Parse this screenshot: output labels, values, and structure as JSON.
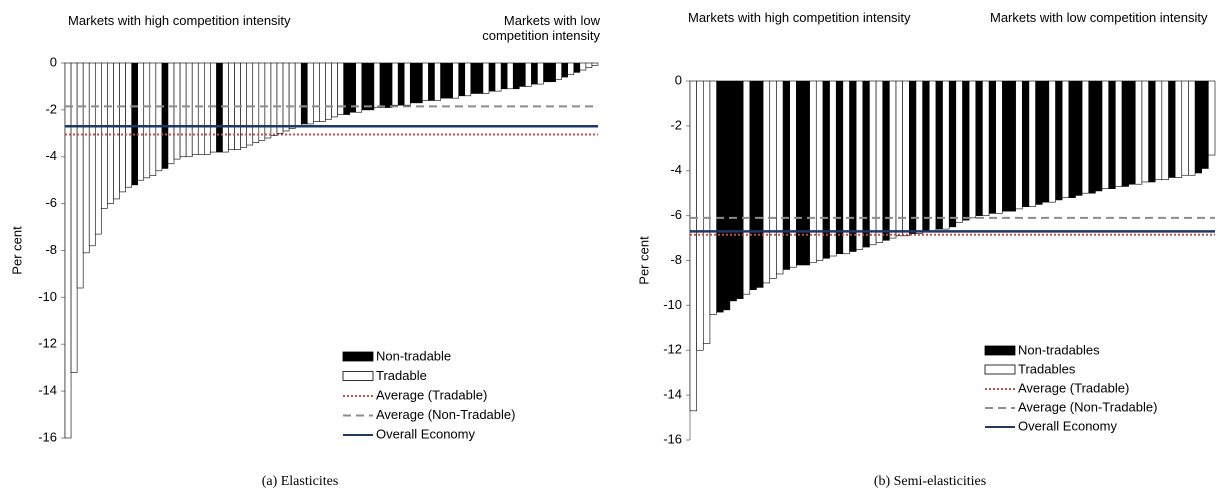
{
  "chart_data": [
    {
      "type": "bar",
      "title": "(a) Elasticites",
      "ylabel": "Per cent",
      "annotations": [
        "Markets with high competition intensity",
        "Markets with low competition intensity"
      ],
      "ylim": [
        -16,
        0
      ],
      "yticks": [
        0,
        -2,
        -4,
        -6,
        -8,
        -10,
        -12,
        -14,
        -16
      ],
      "series": [
        {
          "name": "Non-tradable",
          "color": "#000000",
          "values": [
            null,
            null,
            null,
            null,
            null,
            null,
            null,
            null,
            null,
            null,
            null,
            -5.2,
            null,
            null,
            null,
            null,
            -4.5,
            null,
            null,
            null,
            null,
            null,
            null,
            null,
            null,
            -3.8,
            null,
            null,
            null,
            null,
            null,
            null,
            null,
            null,
            null,
            null,
            null,
            null,
            null,
            -2.6,
            null,
            null,
            null,
            null,
            null,
            null,
            -2.2,
            -2.1,
            null,
            -2,
            -2,
            null,
            -1.9,
            -1.9,
            null,
            -1.8,
            null,
            -1.7,
            -1.7,
            null,
            -1.6,
            null,
            -1.5,
            -1.5,
            null,
            -1.4,
            null,
            -1.3,
            -1.3,
            null,
            -1.2,
            null,
            -1.1,
            null,
            -1.1,
            -1,
            null,
            -0.9,
            null,
            -0.8,
            -0.8,
            null,
            -0.6,
            null,
            -0.4,
            null,
            null,
            null
          ]
        },
        {
          "name": "Tradable",
          "color": "#ffffff",
          "values": [
            -16,
            -13.2,
            -9.6,
            -8.1,
            -7.8,
            -7.3,
            -6.2,
            -6,
            -5.8,
            -5.5,
            -5.3,
            null,
            -5,
            -4.9,
            -4.8,
            -4.6,
            null,
            -4.3,
            -4.1,
            -4,
            -4,
            -3.9,
            -3.9,
            -3.9,
            -3.8,
            null,
            -3.8,
            -3.7,
            -3.7,
            -3.6,
            -3.5,
            -3.4,
            -3.3,
            -3.2,
            -3.1,
            -3,
            -2.9,
            -2.8,
            -2.7,
            null,
            -2.6,
            -2.5,
            -2.5,
            -2.4,
            -2.3,
            -2.2,
            null,
            null,
            -2.1,
            null,
            null,
            -1.9,
            null,
            null,
            -1.8,
            null,
            -1.8,
            null,
            null,
            -1.6,
            null,
            -1.6,
            null,
            null,
            -1.5,
            null,
            -1.4,
            null,
            null,
            -1.3,
            null,
            -1.2,
            null,
            -1.1,
            null,
            null,
            -1,
            null,
            -0.9,
            null,
            null,
            -0.7,
            null,
            -0.5,
            null,
            -0.3,
            -0.2,
            -0.1
          ]
        }
      ],
      "reference_lines": [
        {
          "name": "Average (Tradable)",
          "value": -3.05,
          "color": "#c0504d",
          "style": "dotted"
        },
        {
          "name": "Average (Non-Tradable)",
          "value": -1.85,
          "color": "#8c8c8c",
          "style": "dashed"
        },
        {
          "name": "Overall Economy",
          "value": -2.7,
          "color": "#1f3864",
          "style": "solid"
        }
      ]
    },
    {
      "type": "bar",
      "title": "(b) Semi-elasticities",
      "ylabel": "Per cent",
      "annotations": [
        "Markets with high competition intensity",
        "Markets with low competition intensity"
      ],
      "ylim": [
        -16,
        0
      ],
      "yticks": [
        0,
        -2,
        -4,
        -6,
        -8,
        -10,
        -12,
        -14,
        -16
      ],
      "series": [
        {
          "name": "Non-tradables",
          "color": "#000000",
          "values": [
            null,
            null,
            null,
            null,
            -10.3,
            -10.2,
            -9.8,
            -9.7,
            null,
            -9.3,
            -9.2,
            null,
            null,
            null,
            -8.4,
            null,
            -8.2,
            -8.2,
            null,
            null,
            -7.9,
            null,
            -7.7,
            null,
            -7.6,
            null,
            -7.4,
            null,
            null,
            -7.1,
            null,
            null,
            null,
            -6.8,
            null,
            -6.7,
            null,
            -6.6,
            null,
            -6.5,
            null,
            -6.2,
            null,
            -6,
            null,
            -5.9,
            null,
            -5.8,
            -5.8,
            null,
            -5.6,
            null,
            -5.5,
            -5.4,
            null,
            -5.3,
            null,
            -5.2,
            -5.1,
            null,
            -5,
            -4.9,
            null,
            -4.8,
            null,
            -4.7,
            -4.6,
            null,
            null,
            -4.5,
            null,
            null,
            -4.3,
            null,
            null,
            null,
            -4.1,
            -3.9,
            null
          ]
        },
        {
          "name": "Tradables",
          "color": "#ffffff",
          "values": [
            -14.7,
            -12,
            -11.7,
            -10.4,
            null,
            null,
            null,
            null,
            -9.5,
            null,
            null,
            -9,
            -8.8,
            -8.6,
            null,
            -8.3,
            null,
            null,
            -8.1,
            -8,
            null,
            -7.8,
            null,
            -7.7,
            null,
            -7.5,
            null,
            -7.3,
            -7.2,
            null,
            -7,
            -6.9,
            -6.9,
            null,
            -6.8,
            null,
            -6.7,
            null,
            -6.6,
            null,
            -6.3,
            null,
            -6.1,
            null,
            -6,
            null,
            -5.9,
            null,
            null,
            -5.7,
            null,
            -5.6,
            null,
            null,
            -5.4,
            null,
            -5.2,
            null,
            null,
            -5,
            null,
            null,
            -4.8,
            null,
            -4.7,
            null,
            null,
            -4.6,
            -4.5,
            null,
            -4.4,
            -4.4,
            null,
            -4.3,
            -4.2,
            -4.2,
            null,
            null,
            -3.3
          ]
        }
      ],
      "reference_lines": [
        {
          "name": "Average (Tradable)",
          "value": -6.85,
          "color": "#c0504d",
          "style": "dotted"
        },
        {
          "name": "Average (Non-Tradable)",
          "value": -6.1,
          "color": "#8c8c8c",
          "style": "dashed"
        },
        {
          "name": "Overall Economy",
          "value": -6.7,
          "color": "#1f3864",
          "style": "solid"
        }
      ]
    }
  ]
}
